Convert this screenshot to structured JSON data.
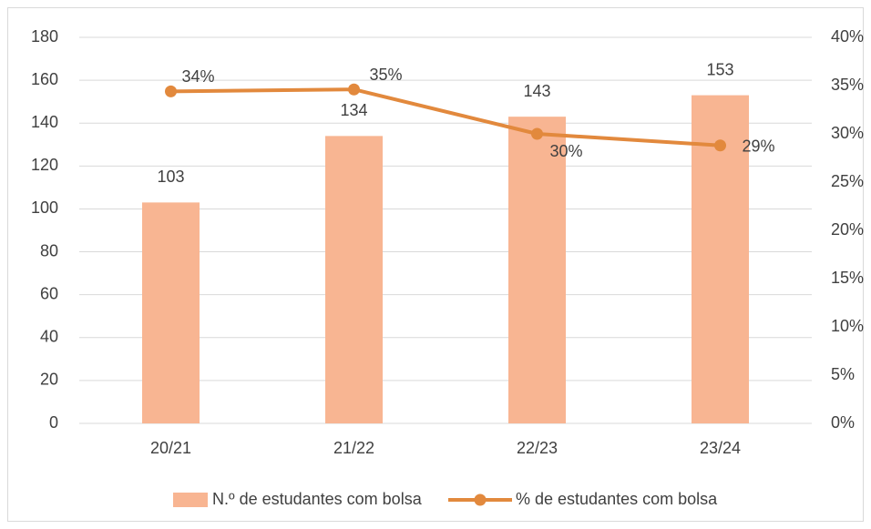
{
  "chart_data": {
    "type": "bar-line",
    "categories": [
      "20/21",
      "21/22",
      "22/23",
      "23/24"
    ],
    "series": [
      {
        "name": "N.º de estudantes com bolsa",
        "type": "bar",
        "color": "#f8b592",
        "values": [
          103,
          134,
          143,
          153
        ]
      },
      {
        "name": "% de estudantes com bolsa",
        "type": "line",
        "axis": "y2",
        "color": "#e2893d",
        "values": [
          34.4,
          34.6,
          30,
          28.8
        ],
        "value_labels": [
          "34%",
          "35%",
          "30%",
          "29%"
        ]
      }
    ],
    "ylim": [
      0,
      180
    ],
    "yticks": [
      0,
      20,
      40,
      60,
      80,
      100,
      120,
      140,
      160,
      180
    ],
    "y2lim": [
      0,
      40
    ],
    "y2ticks": [
      {
        "value": 0,
        "label": "0%"
      },
      {
        "value": 5,
        "label": "5%"
      },
      {
        "value": 10,
        "label": "10%"
      },
      {
        "value": 15,
        "label": "15%"
      },
      {
        "value": 20,
        "label": "20%"
      },
      {
        "value": 25,
        "label": "25%"
      },
      {
        "value": 30,
        "label": "30%"
      },
      {
        "value": 35,
        "label": "35%"
      },
      {
        "value": 40,
        "label": "40%"
      }
    ],
    "grid": true,
    "legend": "bottom"
  }
}
